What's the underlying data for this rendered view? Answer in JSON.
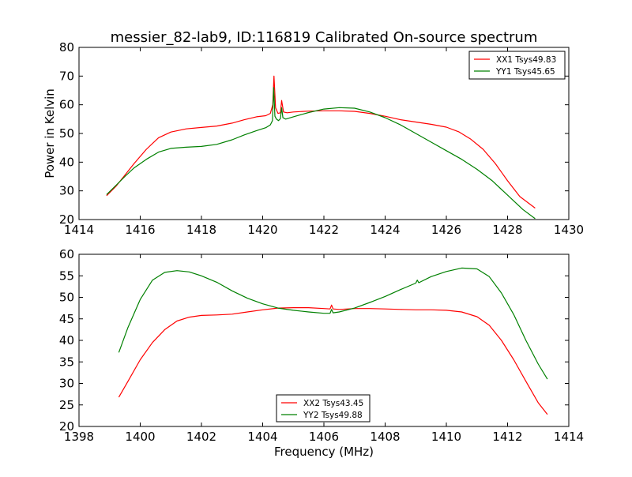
{
  "figure": {
    "title": "messier_82-lab9, ID:116819 Calibrated On-source spectrum",
    "xlabel": "Frequency (MHz)",
    "ylabel": "Power in Kelvin"
  },
  "colors": {
    "series_a": "#ff0000",
    "series_b": "#008000",
    "axis": "#000000",
    "background": "#ffffff"
  },
  "chart_data": [
    {
      "type": "line",
      "title": "messier_82-lab9, ID:116819 Calibrated On-source spectrum",
      "xlabel": "",
      "ylabel": "Power in Kelvin",
      "xlim": [
        1414,
        1430
      ],
      "ylim": [
        20,
        80
      ],
      "xticks": [
        1414,
        1416,
        1418,
        1420,
        1422,
        1424,
        1426,
        1428,
        1430
      ],
      "yticks": [
        20,
        30,
        40,
        50,
        60,
        70,
        80
      ],
      "legend_position": "top-right",
      "grid": false,
      "series": [
        {
          "name": "XX1 Tsys49.83",
          "color": "#ff0000",
          "x": [
            1414.9,
            1415.2,
            1415.5,
            1415.8,
            1416.2,
            1416.6,
            1417.0,
            1417.5,
            1418.0,
            1418.5,
            1419.0,
            1419.4,
            1419.8,
            1420.1,
            1420.25,
            1420.33,
            1420.37,
            1420.42,
            1420.5,
            1420.58,
            1420.62,
            1420.68,
            1420.8,
            1421.0,
            1421.5,
            1422.0,
            1422.5,
            1423.0,
            1423.5,
            1424.0,
            1424.5,
            1425.0,
            1425.5,
            1426.0,
            1426.4,
            1426.8,
            1427.2,
            1427.6,
            1428.0,
            1428.4,
            1428.9
          ],
          "y": [
            28.3,
            31.5,
            35.5,
            39.5,
            44.5,
            48.5,
            50.5,
            51.6,
            52.1,
            52.6,
            53.6,
            54.8,
            55.8,
            56.2,
            57.0,
            60.0,
            70.0,
            59.0,
            57.0,
            57.2,
            61.5,
            57.5,
            57.2,
            57.5,
            57.8,
            57.9,
            57.9,
            57.7,
            57.0,
            56.0,
            54.8,
            54.0,
            53.2,
            52.2,
            50.6,
            48.0,
            44.5,
            39.5,
            33.5,
            28.0,
            24.0
          ]
        },
        {
          "name": "YY1 Tsys45.65",
          "color": "#008000",
          "x": [
            1414.9,
            1415.2,
            1415.5,
            1415.8,
            1416.2,
            1416.6,
            1417.0,
            1417.5,
            1418.0,
            1418.5,
            1419.0,
            1419.4,
            1419.8,
            1420.1,
            1420.25,
            1420.32,
            1420.36,
            1420.4,
            1420.45,
            1420.52,
            1420.58,
            1420.62,
            1420.66,
            1420.75,
            1421.0,
            1421.5,
            1422.0,
            1422.5,
            1423.0,
            1423.5,
            1424.0,
            1424.5,
            1425.0,
            1425.5,
            1426.0,
            1426.5,
            1427.0,
            1427.5,
            1428.0,
            1428.5,
            1428.9
          ],
          "y": [
            28.7,
            31.8,
            35.0,
            38.0,
            41.0,
            43.5,
            44.8,
            45.2,
            45.5,
            46.2,
            47.8,
            49.5,
            51.0,
            52.0,
            53.0,
            54.5,
            66.0,
            56.0,
            55.0,
            54.5,
            55.2,
            59.0,
            55.5,
            55.0,
            55.8,
            57.3,
            58.5,
            59.0,
            58.8,
            57.5,
            55.5,
            53.0,
            50.0,
            47.0,
            44.0,
            41.0,
            37.5,
            33.5,
            28.5,
            23.5,
            20.3
          ]
        }
      ]
    },
    {
      "type": "line",
      "title": "",
      "xlabel": "Frequency (MHz)",
      "ylabel": "",
      "xlim": [
        1398,
        1414
      ],
      "ylim": [
        20,
        60
      ],
      "xticks": [
        1398,
        1400,
        1402,
        1404,
        1406,
        1408,
        1410,
        1412,
        1414
      ],
      "yticks": [
        20,
        25,
        30,
        35,
        40,
        45,
        50,
        55,
        60
      ],
      "legend_position": "bottom-center",
      "grid": false,
      "series": [
        {
          "name": "XX2 Tsys43.45",
          "color": "#ff0000",
          "x": [
            1399.3,
            1399.6,
            1400.0,
            1400.4,
            1400.8,
            1401.2,
            1401.6,
            1402.0,
            1402.5,
            1403.0,
            1403.5,
            1404.0,
            1404.5,
            1405.0,
            1405.5,
            1406.0,
            1406.2,
            1406.25,
            1406.3,
            1406.5,
            1407.0,
            1407.5,
            1408.0,
            1408.5,
            1409.0,
            1409.5,
            1410.0,
            1410.5,
            1411.0,
            1411.4,
            1411.8,
            1412.2,
            1412.6,
            1413.0,
            1413.3
          ],
          "y": [
            26.8,
            30.5,
            35.5,
            39.5,
            42.5,
            44.5,
            45.4,
            45.8,
            45.9,
            46.1,
            46.6,
            47.1,
            47.5,
            47.6,
            47.6,
            47.4,
            47.3,
            48.2,
            47.3,
            47.2,
            47.4,
            47.4,
            47.3,
            47.2,
            47.1,
            47.1,
            47.0,
            46.6,
            45.5,
            43.5,
            40.0,
            35.5,
            30.5,
            25.5,
            22.8
          ]
        },
        {
          "name": "YY2 Tsys49.88",
          "color": "#008000",
          "x": [
            1399.3,
            1399.6,
            1400.0,
            1400.4,
            1400.8,
            1401.2,
            1401.6,
            1402.0,
            1402.5,
            1403.0,
            1403.5,
            1404.0,
            1404.5,
            1405.0,
            1405.5,
            1406.0,
            1406.2,
            1406.25,
            1406.3,
            1406.5,
            1407.0,
            1407.5,
            1408.0,
            1408.5,
            1409.0,
            1409.05,
            1409.1,
            1409.5,
            1410.0,
            1410.5,
            1411.0,
            1411.4,
            1411.8,
            1412.2,
            1412.6,
            1413.0,
            1413.3
          ],
          "y": [
            37.2,
            43.0,
            49.5,
            54.0,
            55.8,
            56.2,
            55.9,
            55.0,
            53.5,
            51.5,
            49.8,
            48.5,
            47.5,
            47.0,
            46.6,
            46.3,
            46.3,
            47.2,
            46.4,
            46.6,
            47.5,
            48.8,
            50.2,
            51.8,
            53.3,
            54.0,
            53.4,
            54.8,
            56.0,
            56.8,
            56.6,
            54.8,
            51.0,
            46.0,
            40.0,
            34.5,
            31.0
          ]
        }
      ]
    }
  ]
}
